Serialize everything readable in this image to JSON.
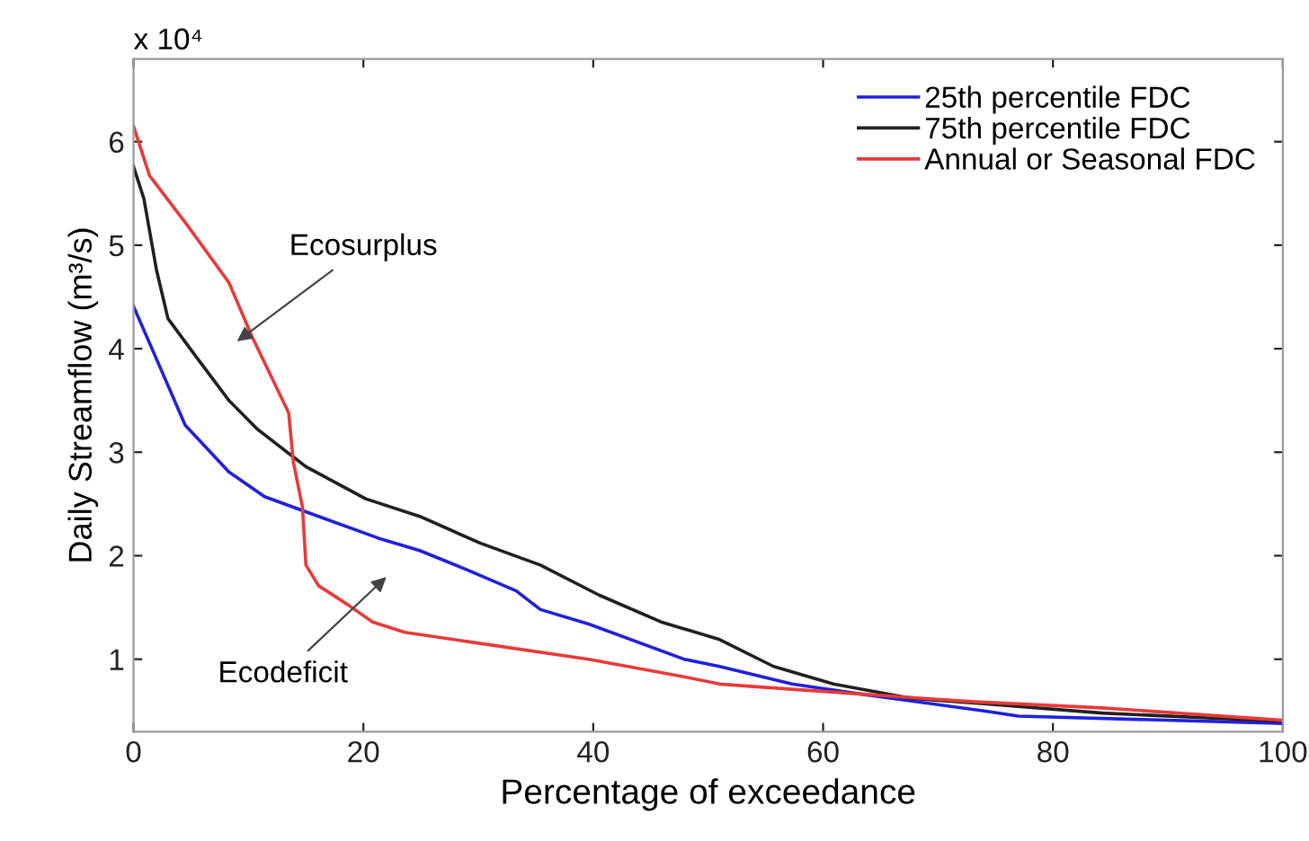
{
  "chart_data": {
    "type": "line",
    "xlabel": "Percentage of exceedance",
    "ylabel": "Daily Streamflow (m³/s)",
    "xlim": [
      0,
      100
    ],
    "xticks": [
      0,
      20,
      40,
      60,
      80,
      100
    ],
    "ylim": [
      0.3,
      6.8
    ],
    "yticks": [
      1,
      2,
      3,
      4,
      5,
      6
    ],
    "grid": false,
    "legend": "top right",
    "line_style": "solid",
    "marker": "none",
    "series": [
      {
        "name": "25th percentile FDC",
        "color": "#2020e0",
        "x": [
          0,
          2,
          4.5,
          8.3,
          11.4,
          16.1,
          21.3,
          24.9,
          29.1,
          33.3,
          35.4,
          39.6,
          47.9,
          51,
          57.3,
          63.5,
          74,
          77,
          100
        ],
        "values": [
          4.41,
          3.9,
          3.26,
          2.81,
          2.57,
          2.38,
          2.17,
          2.05,
          1.86,
          1.66,
          1.48,
          1.34,
          1.0,
          0.93,
          0.76,
          0.66,
          0.5,
          0.45,
          0.38
        ]
      },
      {
        "name": "75th percentile FDC",
        "color": "#202020",
        "x": [
          0,
          0.9,
          2,
          3,
          5.6,
          8.3,
          10.8,
          15,
          20.2,
          24.9,
          30.2,
          35.4,
          40.5,
          45.9,
          51,
          55.7,
          60.9,
          67.8,
          74,
          84.3,
          100
        ],
        "values": [
          5.76,
          5.45,
          4.76,
          4.29,
          3.9,
          3.5,
          3.22,
          2.86,
          2.55,
          2.38,
          2.12,
          1.91,
          1.62,
          1.36,
          1.19,
          0.93,
          0.76,
          0.62,
          0.57,
          0.48,
          0.4
        ]
      },
      {
        "name": "Annual or Seasonal FDC",
        "color": "#e83a3a",
        "x": [
          0,
          1.4,
          4.5,
          8.3,
          10.3,
          13.5,
          13.9,
          14.7,
          15,
          16.1,
          18.6,
          20.8,
          23.6,
          29.1,
          39.6,
          47.9,
          51,
          57.3,
          72.9,
          84.3,
          100
        ],
        "values": [
          6.15,
          5.67,
          5.22,
          4.64,
          4.12,
          3.38,
          2.91,
          2.47,
          1.91,
          1.71,
          1.53,
          1.36,
          1.26,
          1.17,
          1.0,
          0.83,
          0.76,
          0.71,
          0.59,
          0.53,
          0.41
        ]
      }
    ],
    "annotations": [
      "x 10⁴",
      "Ecosurplus",
      "Ecodeficit"
    ]
  }
}
